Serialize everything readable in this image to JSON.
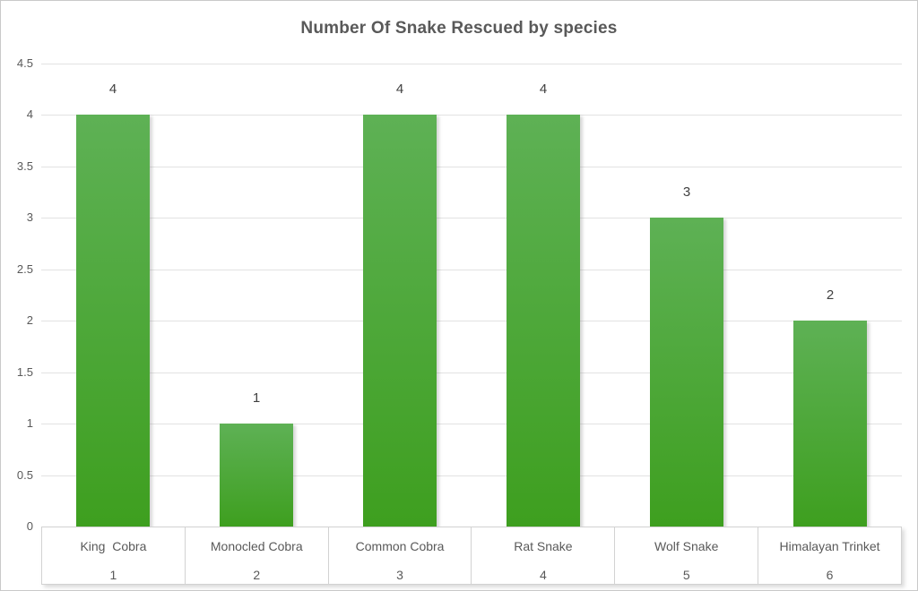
{
  "chart_data": {
    "type": "bar",
    "title": "Number Of Snake Rescued by species",
    "categories": [
      "King  Cobra",
      "Monocled Cobra",
      "Common Cobra",
      "Rat Snake",
      "Wolf Snake",
      "Himalayan Trinket"
    ],
    "category_numbers": [
      "1",
      "2",
      "3",
      "4",
      "5",
      "6"
    ],
    "values": [
      4,
      1,
      4,
      4,
      3,
      2
    ],
    "data_labels": [
      "4",
      "1",
      "4",
      "4",
      "3",
      "2"
    ],
    "xlabel": "",
    "ylabel": "",
    "yticks": [
      "0",
      "0.5",
      "1",
      "1.5",
      "2",
      "2.5",
      "3",
      "3.5",
      "4",
      "4.5"
    ],
    "ylim": [
      0,
      4.5
    ],
    "grid": true,
    "legend_position": "none",
    "colors": {
      "bar_gradient_top": "#5EB155",
      "bar_gradient_bottom": "#3E9F1F",
      "gridline": "#E2E2E2",
      "title_text": "#595959",
      "tick_text": "#595959",
      "data_label_text": "#404040",
      "band_border": "#D2D2D2"
    }
  }
}
